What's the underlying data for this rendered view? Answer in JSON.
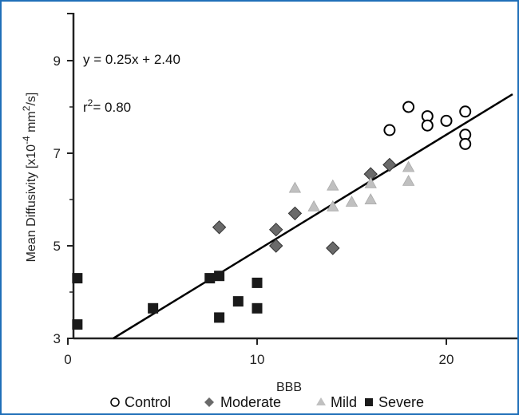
{
  "chart_data": {
    "type": "scatter",
    "xlabel": "BBB",
    "ylabel_main": "Mean Diffusivity [x10",
    "ylabel_exp1": "-4",
    "ylabel_mid": " mm",
    "ylabel_exp2": "2",
    "ylabel_end": "/s]",
    "xlim": [
      0,
      24
    ],
    "ylim": [
      3,
      10
    ],
    "xticks": [
      "0",
      "10",
      "20"
    ],
    "yticks": [
      "3",
      "5",
      "7",
      "9"
    ],
    "annotations": {
      "equation": "y = 0.25x + 2.40",
      "r2_prefix": "r",
      "r2_exp": "2",
      "r2_suffix": "= 0.80"
    },
    "fit": {
      "slope": 0.25,
      "intercept": 2.4
    },
    "colors": {
      "axis": "#222222",
      "control_edge": "#000000",
      "moderate": "#6a6a6a",
      "mild": "#c0c0c0",
      "severe": "#1a1a1a",
      "fit_line": "#000000",
      "frame": "#1f6fb8"
    },
    "series": [
      {
        "name": "Control",
        "marker": "circle-open",
        "points": [
          [
            17,
            7.5
          ],
          [
            18,
            8.0
          ],
          [
            19,
            7.8
          ],
          [
            19,
            7.6
          ],
          [
            20,
            7.7
          ],
          [
            21,
            7.9
          ],
          [
            21,
            7.4
          ],
          [
            21,
            7.2
          ]
        ]
      },
      {
        "name": "Moderate",
        "marker": "diamond",
        "points": [
          [
            8,
            5.4
          ],
          [
            11,
            5.35
          ],
          [
            11,
            5.0
          ],
          [
            12,
            5.7
          ],
          [
            14,
            4.95
          ],
          [
            16,
            6.55
          ],
          [
            17,
            6.75
          ]
        ]
      },
      {
        "name": "Mild",
        "marker": "triangle",
        "points": [
          [
            12,
            6.25
          ],
          [
            13,
            5.85
          ],
          [
            14,
            6.3
          ],
          [
            14,
            5.85
          ],
          [
            15,
            5.95
          ],
          [
            16,
            6.35
          ],
          [
            16,
            6.0
          ],
          [
            18,
            6.7
          ],
          [
            18,
            6.4
          ]
        ]
      },
      {
        "name": "Severe",
        "marker": "square",
        "points": [
          [
            0.5,
            4.3
          ],
          [
            0.5,
            3.3
          ],
          [
            4.5,
            3.65
          ],
          [
            7.5,
            4.3
          ],
          [
            8,
            4.35
          ],
          [
            8,
            3.45
          ],
          [
            9,
            3.8
          ],
          [
            10,
            4.2
          ],
          [
            10,
            3.65
          ]
        ]
      }
    ],
    "legend_position": "bottom"
  }
}
